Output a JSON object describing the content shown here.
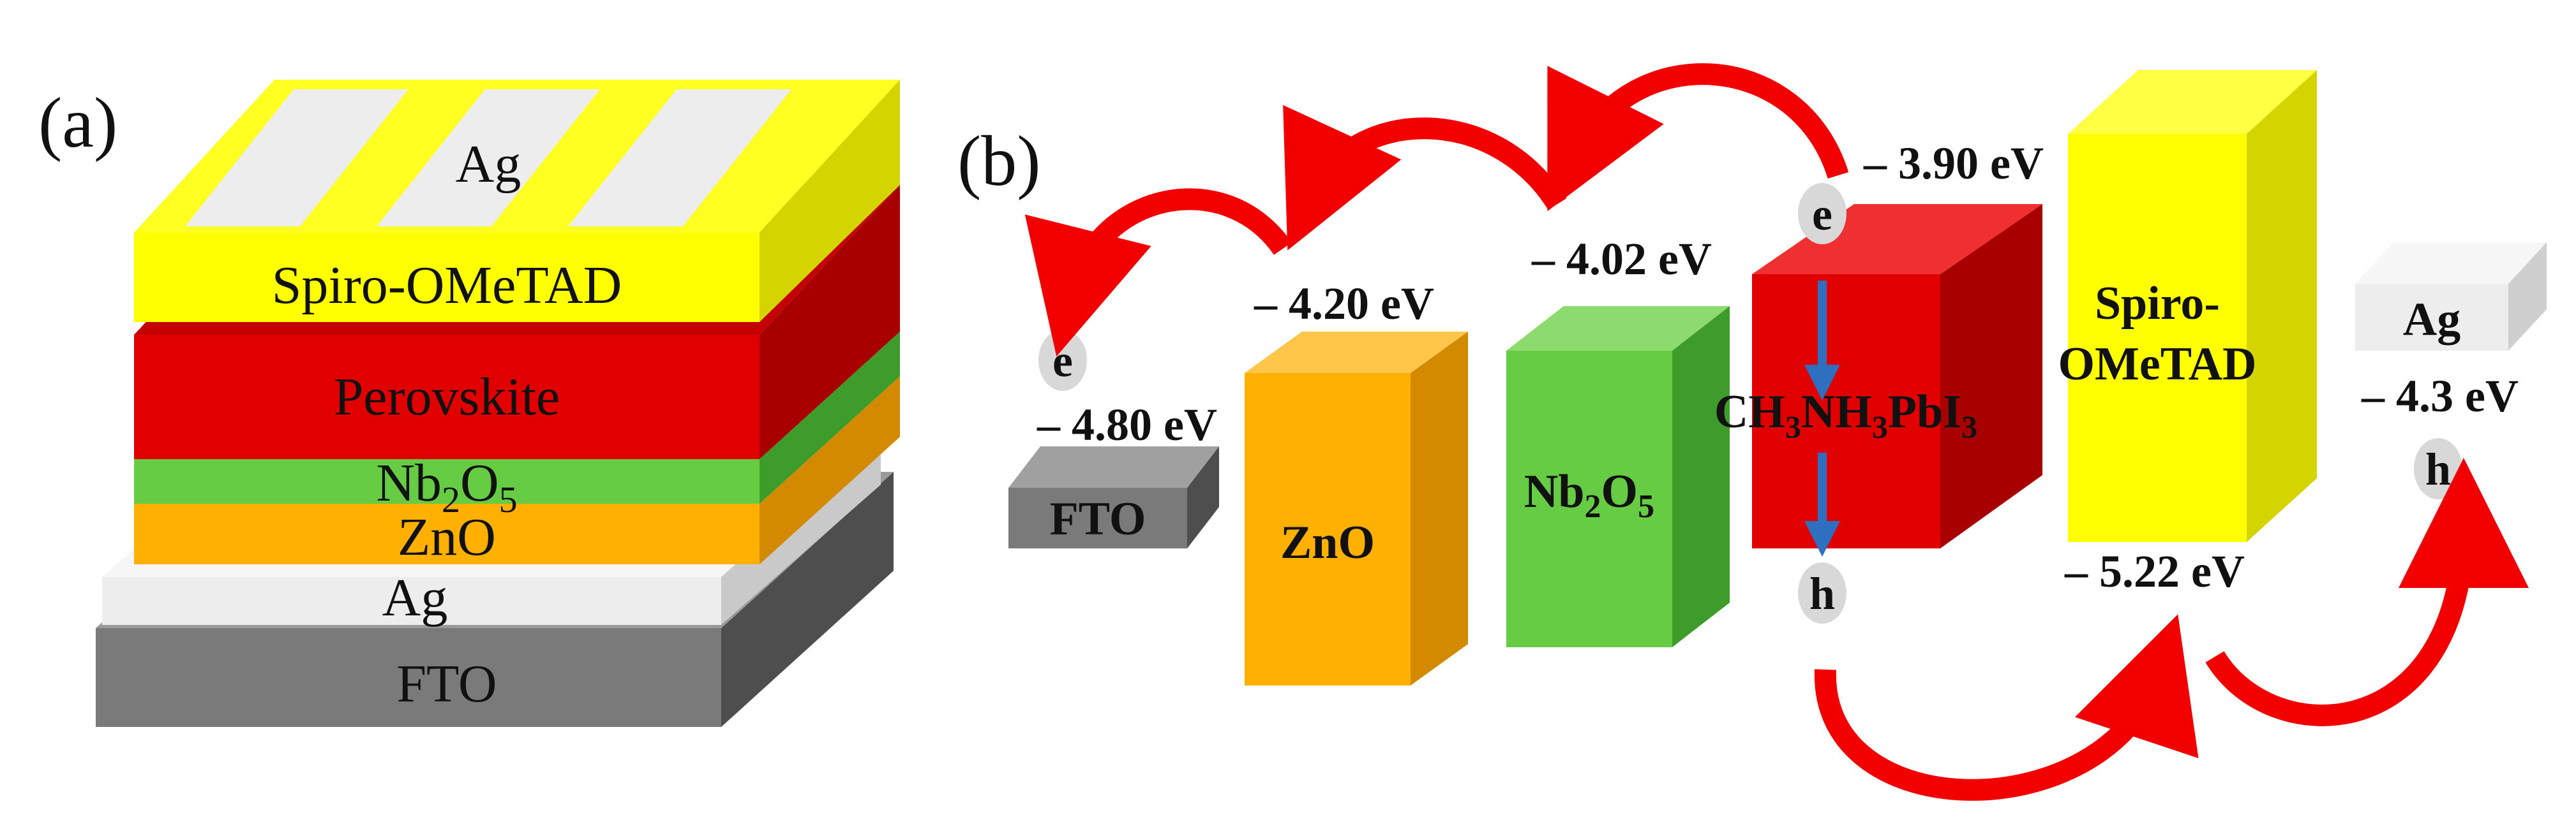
{
  "panel_a": {
    "label": "(a)",
    "layers": {
      "top_contact": "Ag",
      "htl": "Spiro-OMeTAD",
      "absorber": "Perovskite",
      "nb_base": "Nb",
      "nb_sub1": "2",
      "nb_mid": "O",
      "nb_sub2": "5",
      "etl": "ZnO",
      "bottom_contact": "Ag",
      "substrate": "FTO"
    }
  },
  "panel_b": {
    "label": "(b)",
    "blocks": {
      "fto": "FTO",
      "zno": "ZnO",
      "nb_base": "Nb",
      "nb_sub1": "2",
      "nb_mid": "O",
      "nb_sub2": "5",
      "perov_p1": "CH",
      "perov_s1": "3",
      "perov_p2": "NH",
      "perov_s2": "3",
      "perov_p3": "PbI",
      "perov_s3": "3",
      "spiro_line1": "Spiro-",
      "spiro_line2": "OMeTAD",
      "ag": "Ag"
    },
    "energy_levels": {
      "fto": "4.80 eV",
      "zno": "4.20 eV",
      "nb2o5": "4.02 eV",
      "perovskite_lumo": "3.90 eV",
      "ag": "4.3 eV",
      "spiro_homo": "5.22 eV"
    },
    "carriers": {
      "electron": "e",
      "hole": "h"
    }
  },
  "colors": {
    "gold": "#FFFF00",
    "gold_side": "#D4D400",
    "red": "#E00000",
    "red_side": "#A80000",
    "green": "#66CC44",
    "green_side": "#3E9C2A",
    "orange": "#FFB000",
    "orange_side": "#D48A00",
    "silver": "#EDEDED",
    "gray": "#7A7A7A",
    "gray_side": "#4E4E4E",
    "arrow_red": "#F20000",
    "arrow_blue": "#2E6FC0"
  }
}
